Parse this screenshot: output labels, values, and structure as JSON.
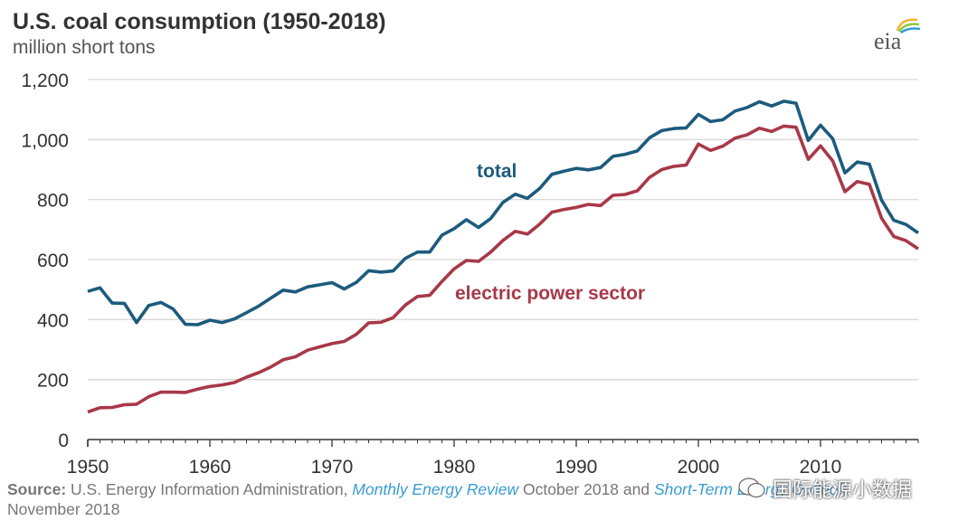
{
  "title": "U.S. coal consumption (1950-2018)",
  "subtitle": "million short tons",
  "logo_text": "eia",
  "source": {
    "label": "Source:",
    "text1": "U.S. Energy Information Administration,",
    "pub1": "Monthly Energy Review",
    "text2": "October 2018 and",
    "pub2": "Short-Term Energy Outlook",
    "text3": "November 2018"
  },
  "watermark": "国际能源小数据",
  "colors": {
    "total": "#1c5b7d",
    "electric": "#a83848",
    "grid": "#d9d9d9",
    "axis": "#333333"
  },
  "chart_data": {
    "type": "line",
    "title": "U.S. coal consumption (1950-2018)",
    "ylabel": "million short tons",
    "xlim": [
      1950,
      2018
    ],
    "ylim": [
      0,
      1200
    ],
    "yticks": [
      0,
      200,
      400,
      600,
      800,
      1000,
      1200
    ],
    "ytick_labels": [
      "0",
      "200",
      "400",
      "600",
      "800",
      "1,000",
      "1,200"
    ],
    "xticks": [
      1950,
      1960,
      1970,
      1980,
      1990,
      2000,
      2010
    ],
    "grid": true,
    "x": [
      1950,
      1951,
      1952,
      1953,
      1954,
      1955,
      1956,
      1957,
      1958,
      1959,
      1960,
      1961,
      1962,
      1963,
      1964,
      1965,
      1966,
      1967,
      1968,
      1969,
      1970,
      1971,
      1972,
      1973,
      1974,
      1975,
      1976,
      1977,
      1978,
      1979,
      1980,
      1981,
      1982,
      1983,
      1984,
      1985,
      1986,
      1987,
      1988,
      1989,
      1990,
      1991,
      1992,
      1993,
      1994,
      1995,
      1996,
      1997,
      1998,
      1999,
      2000,
      2001,
      2002,
      2003,
      2004,
      2005,
      2006,
      2007,
      2008,
      2009,
      2010,
      2011,
      2012,
      2013,
      2014,
      2015,
      2016,
      2017,
      2018
    ],
    "series": [
      {
        "name": "total",
        "values": [
          494,
          506,
          455,
          454,
          390,
          447,
          457,
          435,
          384,
          383,
          398,
          390,
          402,
          423,
          445,
          472,
          498,
          492,
          509,
          516,
          523,
          502,
          524,
          563,
          558,
          562,
          604,
          625,
          625,
          681,
          703,
          733,
          707,
          737,
          791,
          818,
          804,
          837,
          884,
          895,
          904,
          899,
          907,
          944,
          951,
          962,
          1006,
          1030,
          1037,
          1039,
          1084,
          1060,
          1066,
          1095,
          1107,
          1126,
          1112,
          1128,
          1121,
          997,
          1048,
          1003,
          889,
          925,
          918,
          798,
          731,
          717,
          689
        ]
      },
      {
        "name": "electric power sector",
        "values": [
          92,
          106,
          107,
          116,
          118,
          143,
          158,
          158,
          157,
          168,
          177,
          182,
          190,
          208,
          223,
          242,
          266,
          276,
          298,
          309,
          320,
          327,
          351,
          389,
          391,
          406,
          448,
          477,
          481,
          527,
          569,
          597,
          594,
          625,
          664,
          694,
          685,
          718,
          758,
          767,
          774,
          784,
          780,
          814,
          817,
          829,
          874,
          900,
          911,
          915,
          985,
          964,
          978,
          1005,
          1016,
          1038,
          1027,
          1045,
          1041,
          934,
          979,
          929,
          826,
          860,
          851,
          738,
          677,
          663,
          636
        ]
      }
    ]
  }
}
